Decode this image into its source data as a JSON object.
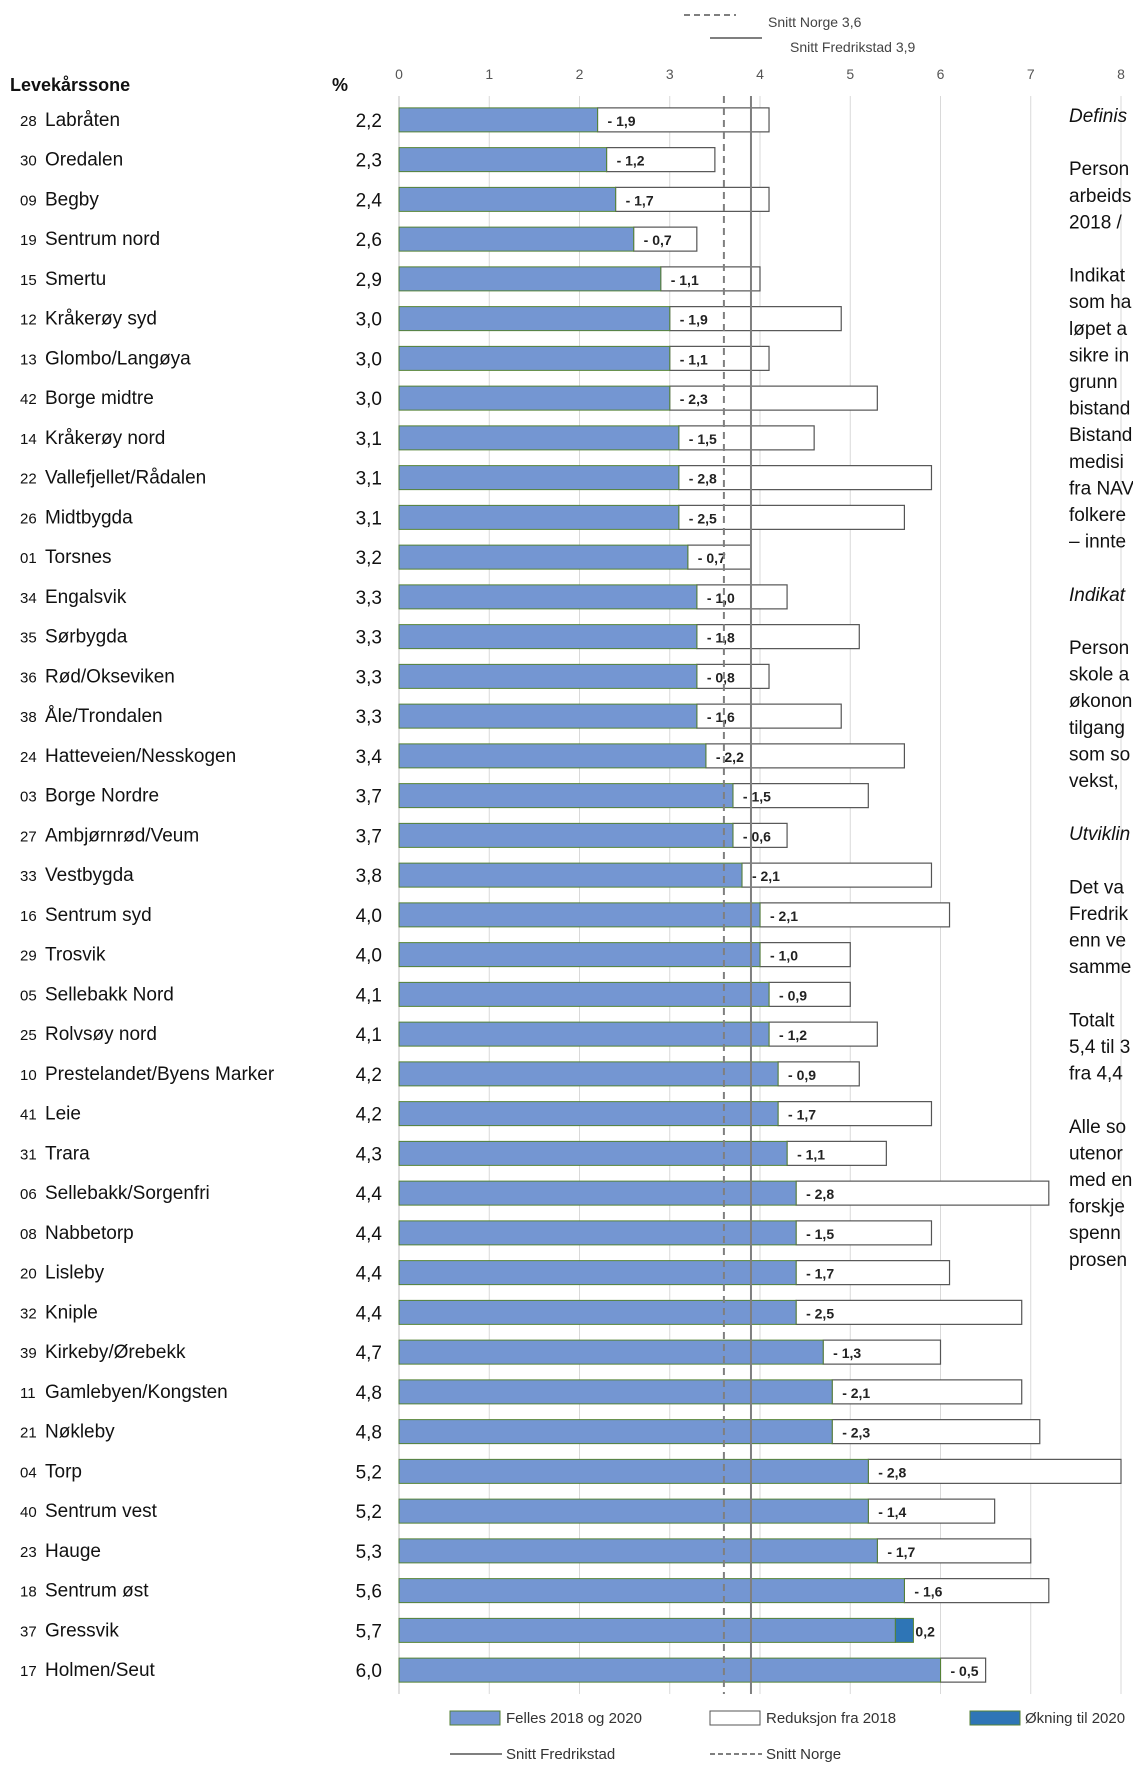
{
  "chart_data": {
    "type": "bar",
    "orientation": "horizontal",
    "stacked": true,
    "category_header": "Levekårssone",
    "value_header": "%",
    "x_ticks": [
      "0",
      "1",
      "2",
      "3",
      "4",
      "5",
      "6",
      "7",
      "8"
    ],
    "xlim": [
      0,
      8
    ],
    "grid": true,
    "reference_lines": [
      {
        "name": "Snitt Norge 3,6",
        "value": 3.6,
        "style": "dashed"
      },
      {
        "name": "Snitt Fredrikstad 3,9",
        "value": 3.9,
        "style": "solid"
      }
    ],
    "series_names": {
      "common": "Felles 2018 og 2020",
      "reduction": "Reduksjon fra 2018",
      "increase": "Økning til 2020"
    },
    "reference_legend": {
      "fredrikstad": "Snitt Fredrikstad",
      "norge": "Snitt Norge"
    },
    "colors": {
      "common": "#7496d2",
      "reduction": "#ffffff",
      "increase": "#2e75b6",
      "grid": "#d9d9d9",
      "reference": "#7f7f7f"
    },
    "rows": [
      {
        "code": "28",
        "name": "Labråten",
        "pct_label": "2,2",
        "value": 2.2,
        "change_label": "- 1,9",
        "change": -1.9
      },
      {
        "code": "30",
        "name": "Oredalen",
        "pct_label": "2,3",
        "value": 2.3,
        "change_label": "- 1,2",
        "change": -1.2
      },
      {
        "code": "09",
        "name": "Begby",
        "pct_label": "2,4",
        "value": 2.4,
        "change_label": "- 1,7",
        "change": -1.7
      },
      {
        "code": "19",
        "name": "Sentrum nord",
        "pct_label": "2,6",
        "value": 2.6,
        "change_label": "- 0,7",
        "change": -0.7
      },
      {
        "code": "15",
        "name": "Smertu",
        "pct_label": "2,9",
        "value": 2.9,
        "change_label": "- 1,1",
        "change": -1.1
      },
      {
        "code": "12",
        "name": "Kråkerøy syd",
        "pct_label": "3,0",
        "value": 3.0,
        "change_label": "- 1,9",
        "change": -1.9
      },
      {
        "code": "13",
        "name": "Glombo/Langøya",
        "pct_label": "3,0",
        "value": 3.0,
        "change_label": "- 1,1",
        "change": -1.1
      },
      {
        "code": "42",
        "name": "Borge midtre",
        "pct_label": "3,0",
        "value": 3.0,
        "change_label": "- 2,3",
        "change": -2.3
      },
      {
        "code": "14",
        "name": "Kråkerøy nord",
        "pct_label": "3,1",
        "value": 3.1,
        "change_label": "- 1,5",
        "change": -1.5
      },
      {
        "code": "22",
        "name": "Vallefjellet/Rådalen",
        "pct_label": "3,1",
        "value": 3.1,
        "change_label": "- 2,8",
        "change": -2.8
      },
      {
        "code": "26",
        "name": "Midtbygda",
        "pct_label": "3,1",
        "value": 3.1,
        "change_label": "- 2,5",
        "change": -2.5
      },
      {
        "code": "01",
        "name": "Torsnes",
        "pct_label": "3,2",
        "value": 3.2,
        "change_label": "- 0,7",
        "change": -0.7
      },
      {
        "code": "34",
        "name": "Engalsvik",
        "pct_label": "3,3",
        "value": 3.3,
        "change_label": "- 1,0",
        "change": -1.0
      },
      {
        "code": "35",
        "name": "Sørbygda",
        "pct_label": "3,3",
        "value": 3.3,
        "change_label": "- 1,8",
        "change": -1.8
      },
      {
        "code": "36",
        "name": "Rød/Okseviken",
        "pct_label": "3,3",
        "value": 3.3,
        "change_label": "- 0,8",
        "change": -0.8
      },
      {
        "code": "38",
        "name": "Åle/Trondalen",
        "pct_label": "3,3",
        "value": 3.3,
        "change_label": "- 1,6",
        "change": -1.6
      },
      {
        "code": "24",
        "name": "Hatteveien/Nesskogen",
        "pct_label": "3,4",
        "value": 3.4,
        "change_label": "- 2,2",
        "change": -2.2
      },
      {
        "code": "03",
        "name": "Borge Nordre",
        "pct_label": "3,7",
        "value": 3.7,
        "change_label": "- 1,5",
        "change": -1.5
      },
      {
        "code": "27",
        "name": "Ambjørnrød/Veum",
        "pct_label": "3,7",
        "value": 3.7,
        "change_label": "- 0,6",
        "change": -0.6
      },
      {
        "code": "33",
        "name": "Vestbygda",
        "pct_label": "3,8",
        "value": 3.8,
        "change_label": "- 2,1",
        "change": -2.1
      },
      {
        "code": "16",
        "name": "Sentrum syd",
        "pct_label": "4,0",
        "value": 4.0,
        "change_label": "- 2,1",
        "change": -2.1
      },
      {
        "code": "29",
        "name": "Trosvik",
        "pct_label": "4,0",
        "value": 4.0,
        "change_label": "- 1,0",
        "change": -1.0
      },
      {
        "code": "05",
        "name": "Sellebakk Nord",
        "pct_label": "4,1",
        "value": 4.1,
        "change_label": "- 0,9",
        "change": -0.9
      },
      {
        "code": "25",
        "name": "Rolvsøy nord",
        "pct_label": "4,1",
        "value": 4.1,
        "change_label": "- 1,2",
        "change": -1.2
      },
      {
        "code": "10",
        "name": "Prestelandet/Byens Marker",
        "pct_label": "4,2",
        "value": 4.2,
        "change_label": "- 0,9",
        "change": -0.9
      },
      {
        "code": "41",
        "name": "Leie",
        "pct_label": "4,2",
        "value": 4.2,
        "change_label": "- 1,7",
        "change": -1.7
      },
      {
        "code": "31",
        "name": "Trara",
        "pct_label": "4,3",
        "value": 4.3,
        "change_label": "- 1,1",
        "change": -1.1
      },
      {
        "code": "06",
        "name": "Sellebakk/Sorgenfri",
        "pct_label": "4,4",
        "value": 4.4,
        "change_label": "- 2,8",
        "change": -2.8
      },
      {
        "code": "08",
        "name": "Nabbetorp",
        "pct_label": "4,4",
        "value": 4.4,
        "change_label": "- 1,5",
        "change": -1.5
      },
      {
        "code": "20",
        "name": "Lisleby",
        "pct_label": "4,4",
        "value": 4.4,
        "change_label": "- 1,7",
        "change": -1.7
      },
      {
        "code": "32",
        "name": "Kniple",
        "pct_label": "4,4",
        "value": 4.4,
        "change_label": "- 2,5",
        "change": -2.5
      },
      {
        "code": "39",
        "name": "Kirkeby/Ørebekk",
        "pct_label": "4,7",
        "value": 4.7,
        "change_label": "- 1,3",
        "change": -1.3
      },
      {
        "code": "11",
        "name": "Gamlebyen/Kongsten",
        "pct_label": "4,8",
        "value": 4.8,
        "change_label": "- 2,1",
        "change": -2.1
      },
      {
        "code": "21",
        "name": "Nøkleby",
        "pct_label": "4,8",
        "value": 4.8,
        "change_label": "- 2,3",
        "change": -2.3
      },
      {
        "code": "04",
        "name": "Torp",
        "pct_label": "5,2",
        "value": 5.2,
        "change_label": "- 2,8",
        "change": -2.8
      },
      {
        "code": "40",
        "name": "Sentrum vest",
        "pct_label": "5,2",
        "value": 5.2,
        "change_label": "- 1,4",
        "change": -1.4
      },
      {
        "code": "23",
        "name": "Hauge",
        "pct_label": "5,3",
        "value": 5.3,
        "change_label": "- 1,7",
        "change": -1.7
      },
      {
        "code": "18",
        "name": "Sentrum øst",
        "pct_label": "5,6",
        "value": 5.6,
        "change_label": "- 1,6",
        "change": -1.6
      },
      {
        "code": "37",
        "name": "Gressvik",
        "pct_label": "5,7",
        "value": 5.7,
        "change_label": "0,2",
        "change": 0.2
      },
      {
        "code": "17",
        "name": "Holmen/Seut",
        "pct_label": "6,0",
        "value": 6.0,
        "change_label": "- 0,5",
        "change": -0.5
      }
    ]
  },
  "side_text": {
    "lines": [
      {
        "text": "Definis",
        "italic": true
      },
      {
        "text": "",
        "italic": false
      },
      {
        "text": "Person",
        "italic": false
      },
      {
        "text": "arbeids",
        "italic": false
      },
      {
        "text": "2018 /",
        "italic": false
      },
      {
        "text": "",
        "italic": false
      },
      {
        "text": "Indikat",
        "italic": false
      },
      {
        "text": "som ha",
        "italic": false
      },
      {
        "text": "løpet a",
        "italic": false
      },
      {
        "text": "sikre in",
        "italic": false
      },
      {
        "text": "grunn",
        "italic": false
      },
      {
        "text": "bistand",
        "italic": false
      },
      {
        "text": "Bistand",
        "italic": false
      },
      {
        "text": "medisi",
        "italic": false
      },
      {
        "text": "fra NAV",
        "italic": false
      },
      {
        "text": "folkere",
        "italic": false
      },
      {
        "text": "– innte",
        "italic": false
      },
      {
        "text": "",
        "italic": false
      },
      {
        "text": "Indikat",
        "italic": true
      },
      {
        "text": "",
        "italic": false
      },
      {
        "text": "Person",
        "italic": false
      },
      {
        "text": "skole a",
        "italic": false
      },
      {
        "text": "økonon",
        "italic": false
      },
      {
        "text": "tilgang",
        "italic": false
      },
      {
        "text": "som so",
        "italic": false
      },
      {
        "text": "vekst,",
        "italic": false
      },
      {
        "text": "",
        "italic": false
      },
      {
        "text": "Utviklin",
        "italic": true
      },
      {
        "text": "",
        "italic": false
      },
      {
        "text": "Det va",
        "italic": false
      },
      {
        "text": "Fredrik",
        "italic": false
      },
      {
        "text": "enn ve",
        "italic": false
      },
      {
        "text": "samme",
        "italic": false
      },
      {
        "text": "",
        "italic": false
      },
      {
        "text": "Totalt",
        "italic": false
      },
      {
        "text": "5,4 til 3",
        "italic": false
      },
      {
        "text": "fra 4,4",
        "italic": false
      },
      {
        "text": "",
        "italic": false
      },
      {
        "text": "Alle so",
        "italic": false
      },
      {
        "text": "utenor",
        "italic": false
      },
      {
        "text": "med en",
        "italic": false
      },
      {
        "text": "forskje",
        "italic": false
      },
      {
        "text": "spenn",
        "italic": false
      },
      {
        "text": "prosen",
        "italic": false
      }
    ]
  }
}
